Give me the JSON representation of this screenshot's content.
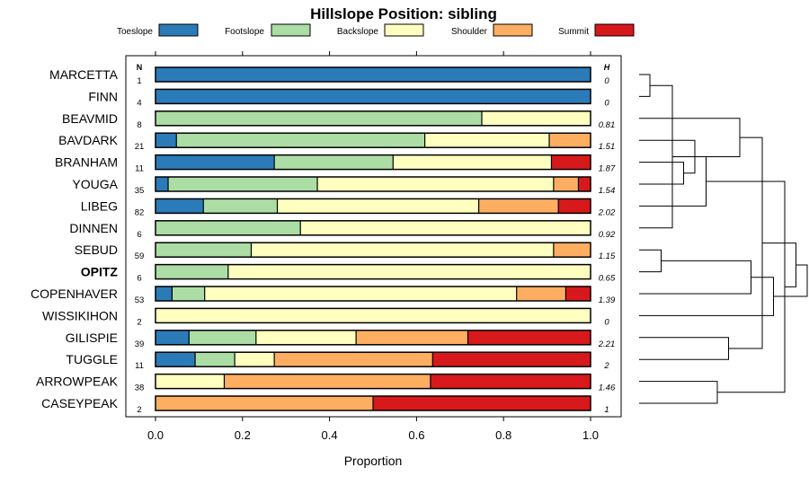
{
  "chart_data": {
    "type": "bar",
    "subtype": "stacked-horizontal-proportion",
    "title": "Hillslope Position: sibling",
    "xlabel": "Proportion",
    "ylabel": "",
    "xlim": [
      0,
      1
    ],
    "x_ticks": [
      "0.0",
      "0.2",
      "0.4",
      "0.6",
      "0.8",
      "1.0"
    ],
    "n_header": "N",
    "h_header": "H",
    "highlight_category": "OPITZ",
    "colors": {
      "Toeslope": "#2b7bb9",
      "Footslope": "#abdda4",
      "Backslope": "#ffffbf",
      "Shoulder": "#fdae61",
      "Summit": "#d7191c"
    },
    "series_names": [
      "Toeslope",
      "Footslope",
      "Backslope",
      "Shoulder",
      "Summit"
    ],
    "categories": [
      "MARCETTA",
      "FINN",
      "BEAVMID",
      "BAVDARK",
      "BRANHAM",
      "YOUGA",
      "LIBEG",
      "DINNEN",
      "SEBUD",
      "OPITZ",
      "COPENHAVER",
      "WISSIKIHON",
      "GILISPIE",
      "TUGGLE",
      "ARROWPEAK",
      "CASEYPEAK"
    ],
    "n_values": [
      "1",
      "4",
      "8",
      "21",
      "11",
      "35",
      "82",
      "6",
      "59",
      "6",
      "53",
      "2",
      "39",
      "11",
      "38",
      "2"
    ],
    "h_values": [
      "0",
      "0",
      "0.81",
      "1.51",
      "1.87",
      "1.54",
      "2.02",
      "0.92",
      "1.15",
      "0.65",
      "1.39",
      "0",
      "2.21",
      "2",
      "1.46",
      "1"
    ],
    "series": [
      {
        "name": "Toeslope",
        "values": [
          1.0,
          1.0,
          0.0,
          0.048,
          0.273,
          0.029,
          0.11,
          0.0,
          0.0,
          0.0,
          0.038,
          0.0,
          0.077,
          0.091,
          0.0,
          0.0
        ]
      },
      {
        "name": "Footslope",
        "values": [
          0.0,
          0.0,
          0.75,
          0.571,
          0.273,
          0.343,
          0.17,
          0.333,
          0.22,
          0.167,
          0.075,
          0.0,
          0.154,
          0.091,
          0.0,
          0.0
        ]
      },
      {
        "name": "Backslope",
        "values": [
          0.0,
          0.0,
          0.25,
          0.286,
          0.364,
          0.543,
          0.463,
          0.667,
          0.695,
          0.833,
          0.717,
          1.0,
          0.23,
          0.091,
          0.158,
          0.0
        ]
      },
      {
        "name": "Shoulder",
        "values": [
          0.0,
          0.0,
          0.0,
          0.095,
          0.0,
          0.057,
          0.183,
          0.0,
          0.085,
          0.0,
          0.113,
          0.0,
          0.257,
          0.364,
          0.474,
          0.5
        ]
      },
      {
        "name": "Summit",
        "values": [
          0.0,
          0.0,
          0.0,
          0.0,
          0.091,
          0.028,
          0.074,
          0.0,
          0.0,
          0.0,
          0.057,
          0.0,
          0.282,
          0.363,
          0.368,
          0.5
        ]
      }
    ],
    "dendrogram_merges": [
      [
        0,
        1
      ],
      [
        8,
        9
      ],
      [
        7,
        16
      ],
      [
        4,
        5
      ],
      [
        3,
        19
      ],
      [
        6,
        20
      ],
      [
        14,
        15
      ],
      [
        12,
        13
      ],
      [
        2,
        18
      ],
      [
        10,
        17
      ],
      [
        23,
        24
      ],
      [
        11,
        25
      ],
      [
        22,
        21
      ],
      [
        26,
        28
      ],
      [
        27,
        29
      ]
    ]
  }
}
